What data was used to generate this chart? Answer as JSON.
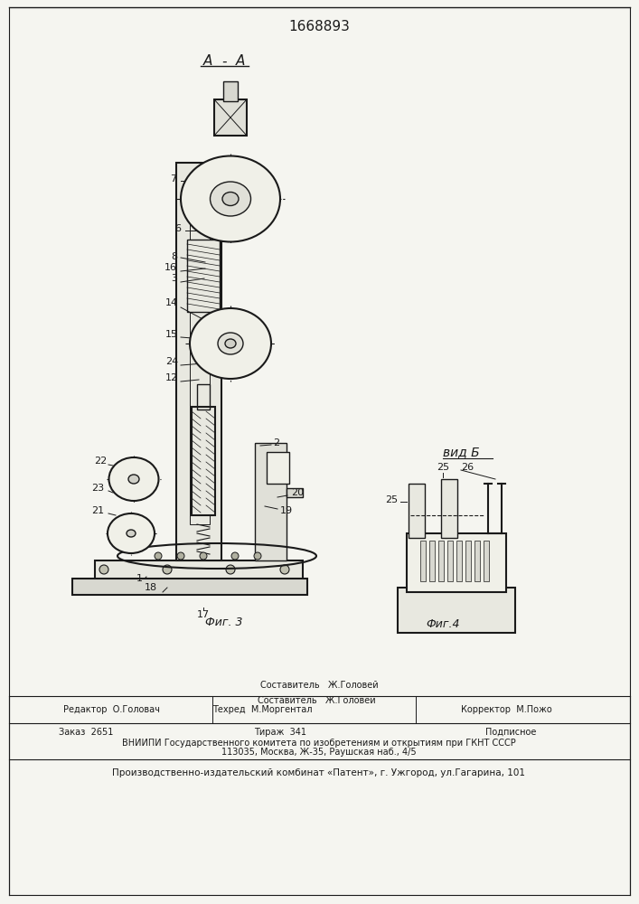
{
  "patent_number": "1668893",
  "fig3_label": "Фиг. 3",
  "fig4_label": "Фиг.4",
  "view_label": "вид Б",
  "section_label": "A-A",
  "bg_color": "#f5f5f0",
  "line_color": "#1a1a1a",
  "footer_line1_left": "Редактор  О.Головач",
  "footer_line1_mid": "Техред  М.Моргентал",
  "footer_line1_right": "Корректор  М.Пожо",
  "footer_composer": "Составитель   Ж.Головей",
  "footer_order": "Заказ  2651",
  "footer_tirazh": "Тираж  341",
  "footer_podpisnoe": "Подписное",
  "footer_vniiipi": "ВНИИПИ Государственного комитета по изобретениям и открытиям при ГКНТ СССР",
  "footer_address": "113035, Москва, Ж-35, Раушская наб., 4/5",
  "footer_plant": "Производственно-издательский комбинат «Патент», г. Ужгород, ул.Гагарина, 101"
}
